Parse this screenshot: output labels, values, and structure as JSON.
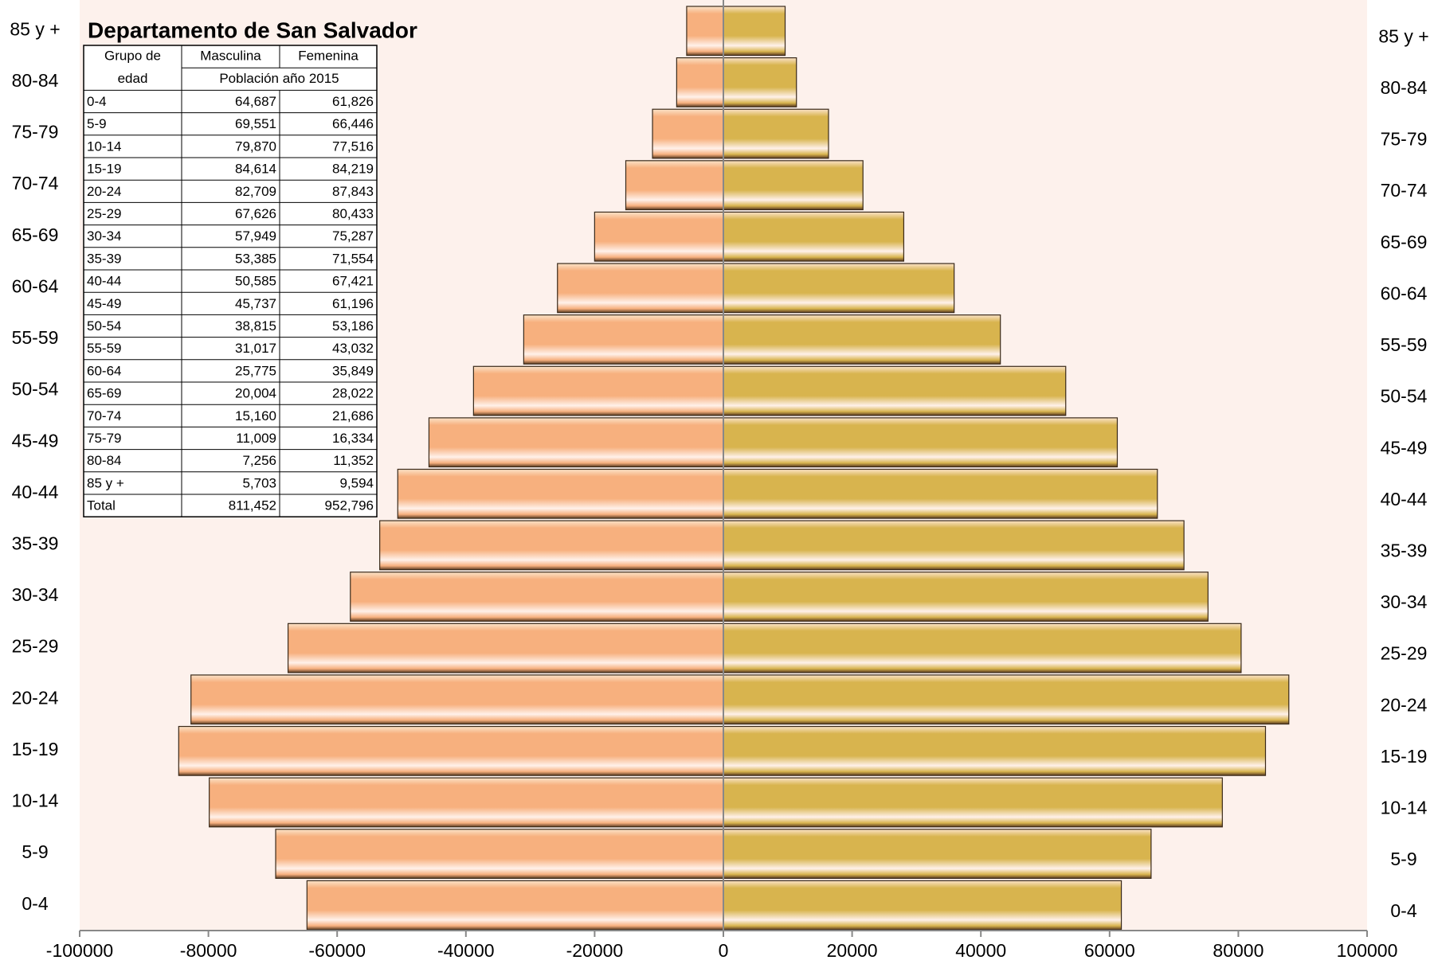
{
  "chart_data": {
    "type": "pyramid",
    "categories": [
      "0-4",
      "5-9",
      "10-14",
      "15-19",
      "20-24",
      "25-29",
      "30-34",
      "35-39",
      "40-44",
      "45-49",
      "50-54",
      "55-59",
      "60-64",
      "65-69",
      "70-74",
      "75-79",
      "80-84",
      "85 y +"
    ],
    "series": [
      {
        "name": "Masculina",
        "color": "#f7b07e",
        "values": [
          -64687,
          -69551,
          -79870,
          -84614,
          -82709,
          -67626,
          -57949,
          -53385,
          -50585,
          -45737,
          -38815,
          -31017,
          -25775,
          -20004,
          -15160,
          -11009,
          -7256,
          -5703
        ]
      },
      {
        "name": "Femenina",
        "color": "#d8b44e",
        "values": [
          61826,
          66446,
          77516,
          84219,
          87843,
          80433,
          75287,
          71554,
          67421,
          61196,
          53186,
          43032,
          35849,
          28022,
          21686,
          16334,
          11352,
          9594
        ]
      }
    ],
    "xlim": [
      -100000,
      100000
    ],
    "xticks": [
      -100000,
      -80000,
      -60000,
      -40000,
      -20000,
      0,
      20000,
      40000,
      60000,
      80000,
      100000
    ]
  },
  "table": {
    "title": "Departamento de San Salvador",
    "group_header": [
      "Grupo de",
      "edad"
    ],
    "male_header": "Masculina",
    "female_header": "Femenina",
    "subheader": "Población año 2015",
    "rows": [
      [
        "0-4",
        "64,687",
        "61,826"
      ],
      [
        "5-9",
        "69,551",
        "66,446"
      ],
      [
        "10-14",
        "79,870",
        "77,516"
      ],
      [
        "15-19",
        "84,614",
        "84,219"
      ],
      [
        "20-24",
        "82,709",
        "87,843"
      ],
      [
        "25-29",
        "67,626",
        "80,433"
      ],
      [
        "30-34",
        "57,949",
        "75,287"
      ],
      [
        "35-39",
        "53,385",
        "71,554"
      ],
      [
        "40-44",
        "50,585",
        "67,421"
      ],
      [
        "45-49",
        "45,737",
        "61,196"
      ],
      [
        "50-54",
        "38,815",
        "53,186"
      ],
      [
        "55-59",
        "31,017",
        "43,032"
      ],
      [
        "60-64",
        "25,775",
        "35,849"
      ],
      [
        "65-69",
        "20,004",
        "28,022"
      ],
      [
        "70-74",
        "15,160",
        "21,686"
      ],
      [
        "75-79",
        "11,009",
        "16,334"
      ],
      [
        "80-84",
        "7,256",
        "11,352"
      ],
      [
        "85 y +",
        "5,703",
        "9,594"
      ],
      [
        "Total",
        "811,452",
        "952,796"
      ]
    ]
  }
}
